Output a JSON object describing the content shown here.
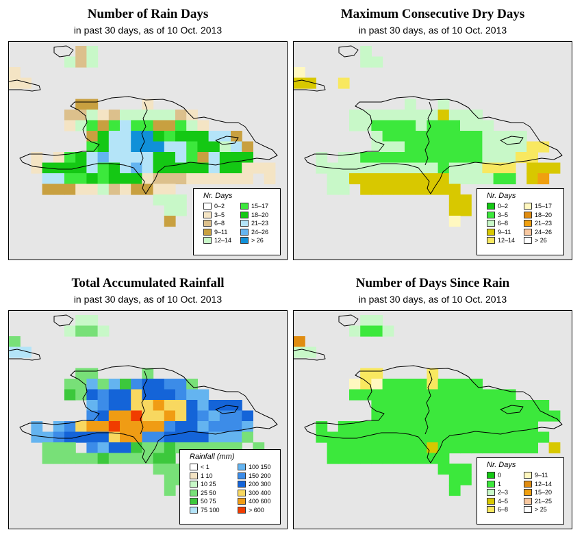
{
  "panels": [
    {
      "title": "Number of Rain Days",
      "subtitle": "in past 30 days, as of  10 Oct. 2013",
      "legend": {
        "title": "Nr. Days",
        "items": [
          {
            "label": "0–2",
            "color": "#ffffff"
          },
          {
            "label": "3–5",
            "color": "#f4e4c4"
          },
          {
            "label": "6–8",
            "color": "#dcc08c"
          },
          {
            "label": "9–11",
            "color": "#c8a040"
          },
          {
            "label": "12–14",
            "color": "#c8f8c8"
          },
          {
            "label": "15–17",
            "color": "#3ce83c"
          },
          {
            "label": "18–20",
            "color": "#14c814"
          },
          {
            "label": "21–23",
            "color": "#b4e4f8"
          },
          {
            "label": "24–26",
            "color": "#64b4f0"
          },
          {
            "label": "> 26",
            "color": "#1090d8"
          }
        ]
      },
      "grid": [
        "......24......................",
        ".....424......................",
        "1.............................",
        "11............................",
        "................................",
        "......33....1.................",
        ".....224124444421.............",
        ".....1453575533541............",
        ".......36779965666773.........",
        ".......567799977566473........",
        "..1.156787777667537666........",
        "..1666675678766666766111......",
        "...7755656661222111111.1......",
        "...333114213311...............",
        ".............444..............",
        "..............44..............",
        "..............3..............."
      ]
    },
    {
      "title": "Maximum Consecutive Dry Days",
      "subtitle": "in past 30 days, as of  10 Oct. 2013",
      "legend": {
        "title": "Nr. Days",
        "items": [
          {
            "label": "0–2",
            "color": "#14c814"
          },
          {
            "label": "3–5",
            "color": "#3ce83c"
          },
          {
            "label": "6–8",
            "color": "#c8f8c8"
          },
          {
            "label": "9–11",
            "color": "#d8c800"
          },
          {
            "label": "12–14",
            "color": "#f8e860"
          },
          {
            "label": "15–17",
            "color": "#fff8c0"
          },
          {
            "label": "18–20",
            "color": "#e08c10"
          },
          {
            "label": "21–23",
            "color": "#f0a010"
          },
          {
            "label": "24–26",
            "color": "#f8c8a0"
          },
          {
            "label": "> 26",
            "color": "#ffffff"
          }
        ]
      },
      "grid": [
        "......2.......................",
        "......22......................",
        "5.............................",
        "33..4.........................",
        "........................",
        "..........2..2................",
        ".....222222223222.............",
        ".....2211112111222............",
        ".......21111111112222.........",
        ".......2221111111222244.......",
        "..2.221111111111122244........",
        "..222222222221222444.333......",
        "...22333333333222211.37.......",
        "...22.333333333...............",
        "..............33..............",
        "..............33..............",
        "..............5..............."
      ]
    },
    {
      "title": "Total Accumulated Rainfall",
      "subtitle": "in past 30 days, as of  10 Oct. 2013",
      "legend": {
        "title": "Rainfall (mm)",
        "items": [
          {
            "label": "< 1",
            "color": "#ffffff"
          },
          {
            "label": "1    10",
            "color": "#f4e4c4"
          },
          {
            "label": "10    25",
            "color": "#c8f8c8"
          },
          {
            "label": "25    50",
            "color": "#78e078"
          },
          {
            "label": "50    75",
            "color": "#3cc83c"
          },
          {
            "label": "75    100",
            "color": "#b4e4f8"
          },
          {
            "label": "100    150",
            "color": "#64b4f0"
          },
          {
            "label": "150    200",
            "color": "#3c8ce8"
          },
          {
            "label": "200    300",
            "color": "#1464d8"
          },
          {
            "label": "300    400",
            "color": "#f8d860"
          },
          {
            "label": "400    600",
            "color": "#f09c14"
          },
          {
            "label": "> 600",
            "color": "#f03c00"
          }
        ]
      },
      "grid": [
        "......22......................",
        ".....2332.....................",
        "3.............................",
        "55............................",
        "............................",
        "......33....3.................",
        ".....336364788773.............",
        ".....4387889888766............",
        ".......678899A9986888.........",
        ".......78AAB99A9876778........",
        "..6.679AABAAAA78867776........",
        "..66788889AA7788886663........",
        "...333.76884334333333.3.......",
        "...333334333344...............",
        ".............333..............",
        "..............33..............",
        "..............3..............."
      ]
    },
    {
      "title": "Number of Days Since Rain",
      "subtitle": "in past 30 days, as of  10 Oct. 2013",
      "legend": {
        "title": "Nr. Days",
        "items": [
          {
            "label": "0",
            "color": "#14c814"
          },
          {
            "label": "1",
            "color": "#3ce83c"
          },
          {
            "label": "2–3",
            "color": "#c8f8c8"
          },
          {
            "label": "4–5",
            "color": "#d8c800"
          },
          {
            "label": "6–8",
            "color": "#f8e860"
          },
          {
            "label": "9–11",
            "color": "#fff8c0"
          },
          {
            "label": "12–14",
            "color": "#e08c10"
          },
          {
            "label": "15–20",
            "color": "#f0a010"
          },
          {
            "label": "21–25",
            "color": "#f8c8a0"
          },
          {
            "label": "> 25",
            "color": "#ffffff"
          }
        ]
      },
      "grid": [
        "......22......................",
        ".....2112.....................",
        "6.............................",
        "22............................",
        "............................",
        "......44....4.................",
        ".....545111141111.............",
        ".....111111111111111..........",
        ".......1111111111111111.......",
        ".......11111111111111111......",
        "..1.111111111111111111........",
        "..111111111111111111111.......",
        "...1111111113111111111.3......",
        "...11111111111................",
        ".............111..............",
        "..............11..............",
        "..............1..............."
      ]
    }
  ]
}
